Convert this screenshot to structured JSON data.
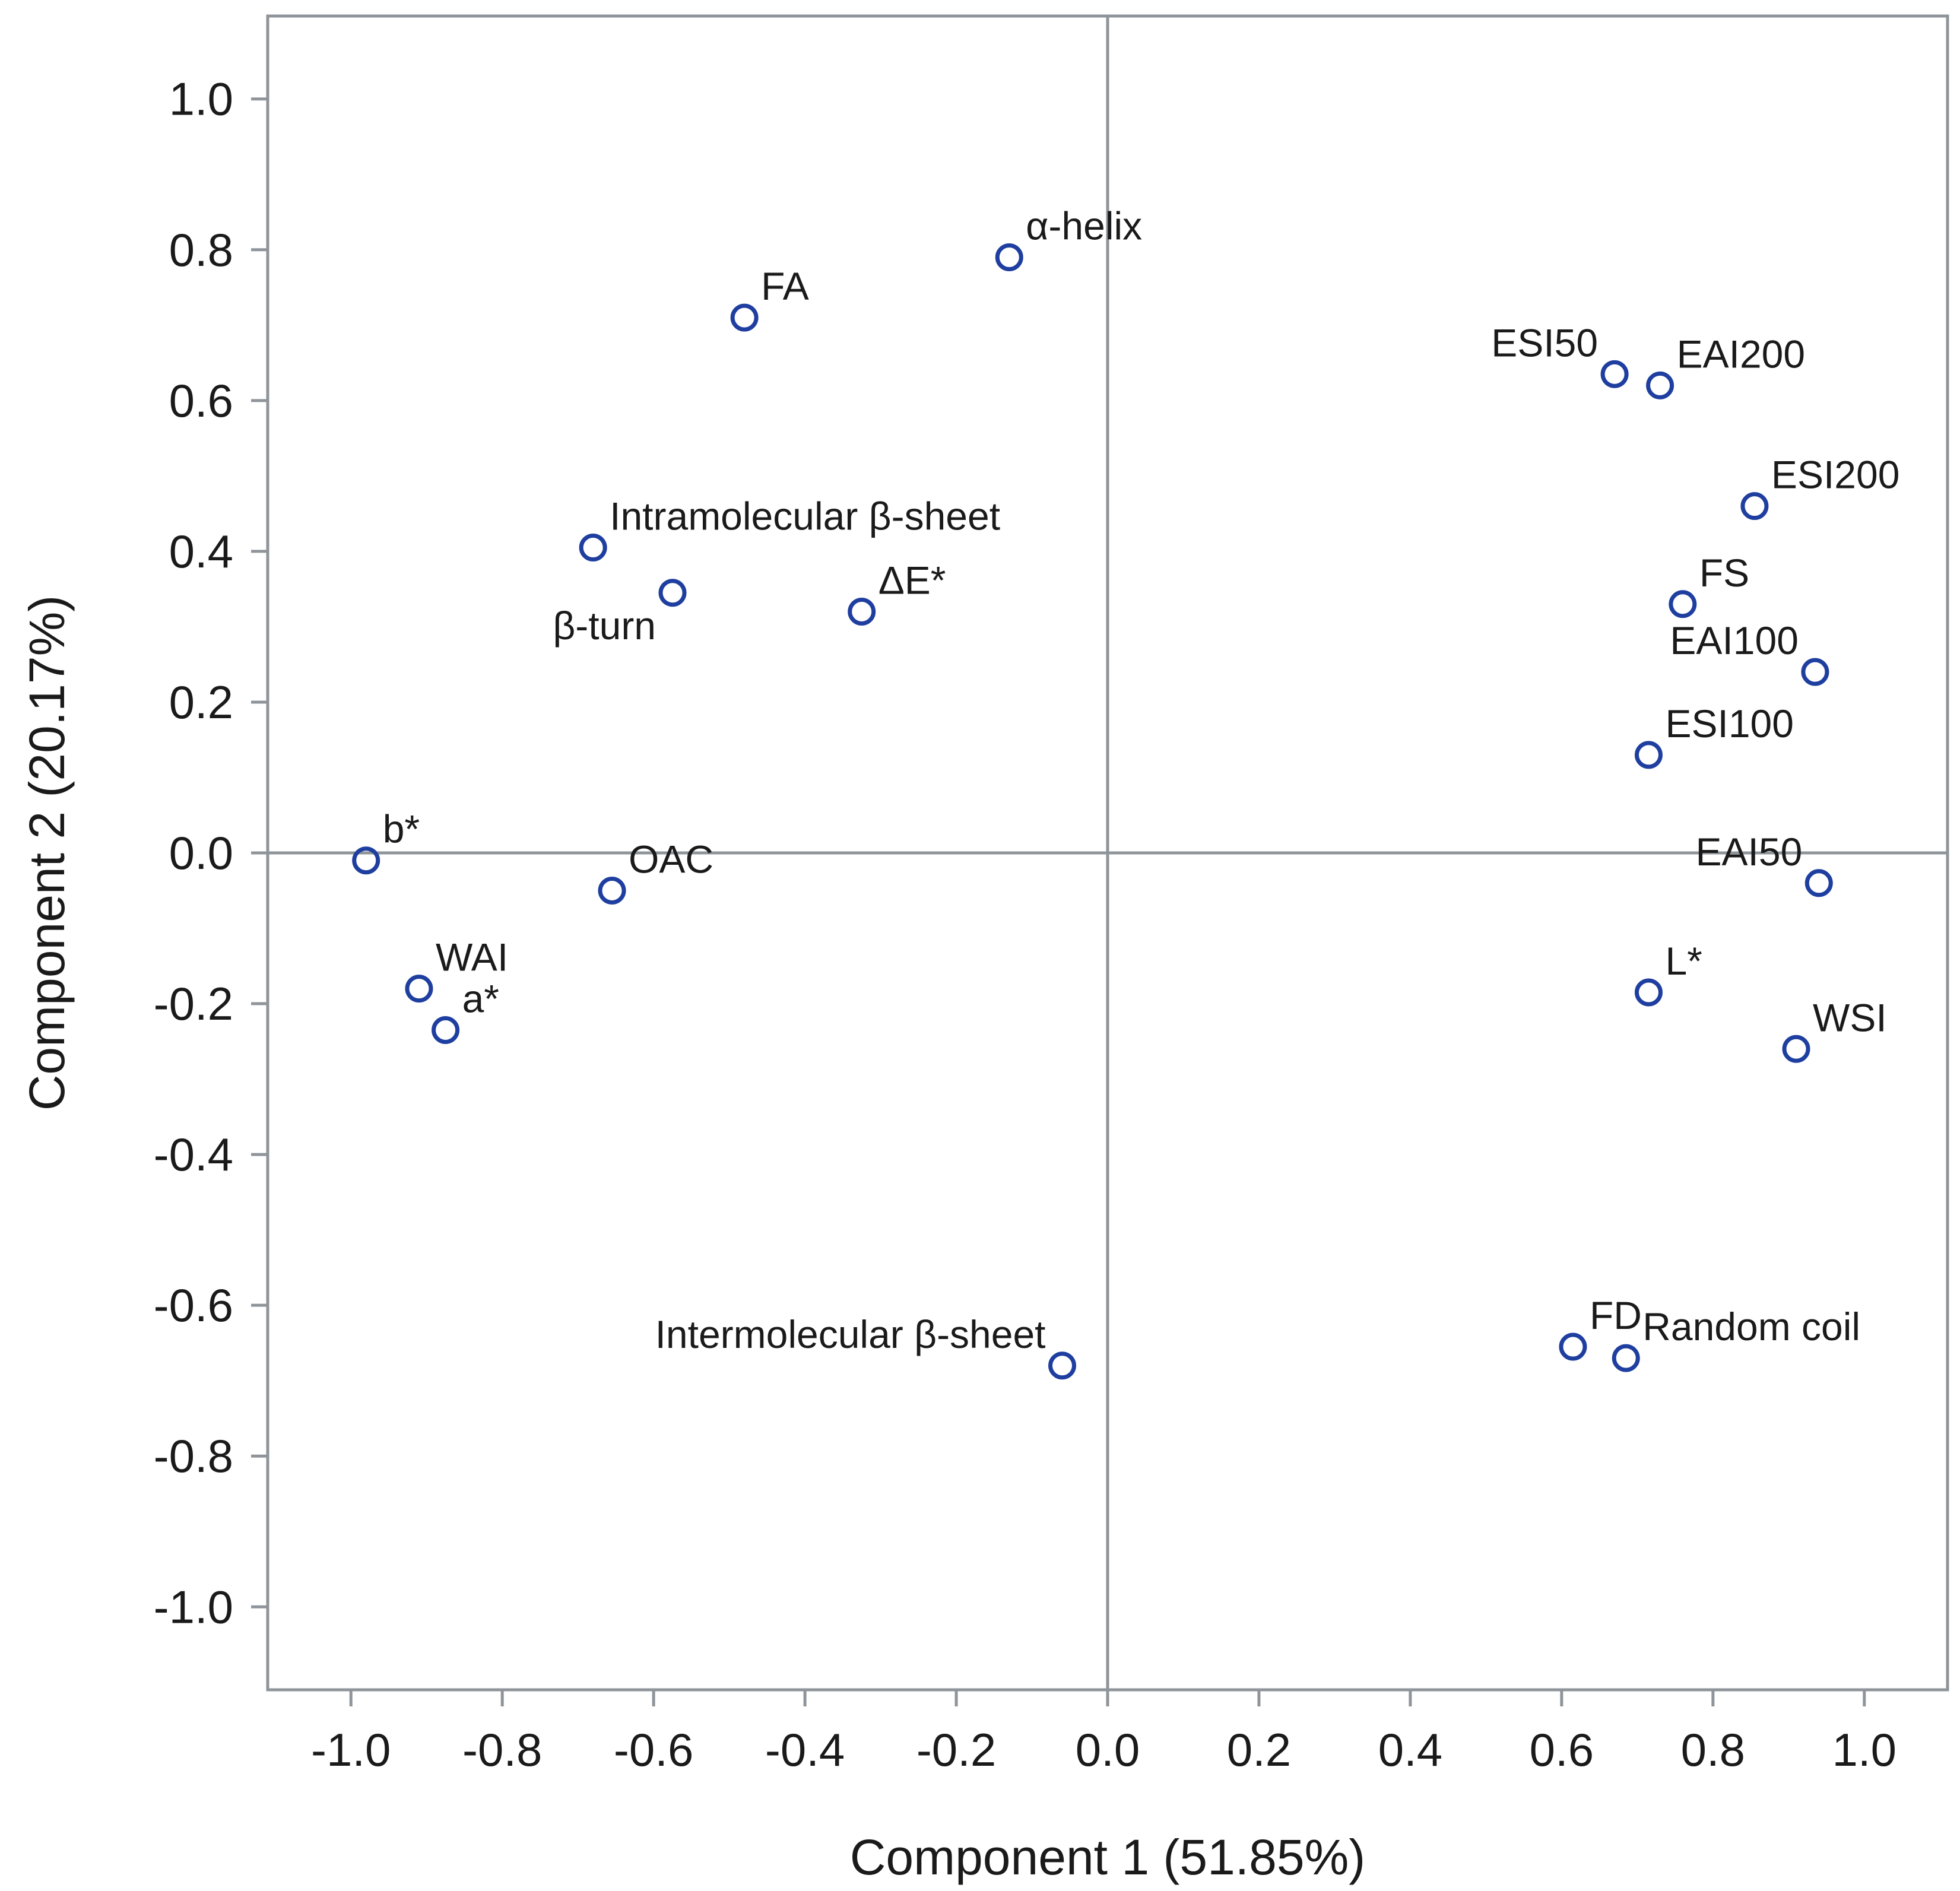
{
  "chart_data": {
    "type": "scatter",
    "title": "",
    "xlabel": "Component 1 (51.85%)",
    "ylabel": "Component 2 (20.17%)",
    "xlim": [
      -1.11,
      1.11
    ],
    "ylim": [
      -1.11,
      1.11
    ],
    "grid": false,
    "reference_lines": {
      "x": 0.0,
      "y": 0.0
    },
    "x_ticks": [
      -1.0,
      -0.8,
      -0.6,
      -0.4,
      -0.2,
      0.0,
      0.2,
      0.4,
      0.6,
      0.8,
      1.0
    ],
    "y_ticks": [
      1.0,
      0.8,
      0.6,
      0.4,
      0.2,
      0.0,
      -0.2,
      -0.4,
      -0.6,
      -0.8,
      -1.0
    ],
    "x_tick_labels": [
      "-1.0",
      "-0.8",
      "-0.6",
      "-0.4",
      "-0.2",
      "0.0",
      "0.2",
      "0.4",
      "0.6",
      "0.8",
      "1.0"
    ],
    "y_tick_labels": [
      "1.0",
      "0.8",
      "0.6",
      "0.4",
      "0.2",
      "0.0",
      "-0.2",
      "-0.4",
      "-0.6",
      "-0.8",
      "-1.0"
    ],
    "marker_color": "#1f3fa0",
    "axis_color": "#8e9499",
    "points": [
      {
        "label": "α-helix",
        "x": -0.13,
        "y": 0.79,
        "anchor": "ne"
      },
      {
        "label": "FA",
        "x": -0.48,
        "y": 0.71,
        "anchor": "ne"
      },
      {
        "label": "ESI50",
        "x": 0.67,
        "y": 0.635,
        "anchor": "nw"
      },
      {
        "label": "EAI200",
        "x": 0.73,
        "y": 0.62,
        "anchor": "ne"
      },
      {
        "label": "ESI200",
        "x": 0.855,
        "y": 0.46,
        "anchor": "ne"
      },
      {
        "label": "Intramolecular β-sheet",
        "x": -0.68,
        "y": 0.405,
        "anchor": "ne"
      },
      {
        "label": "β-turn",
        "x": -0.575,
        "y": 0.345,
        "anchor": "sw"
      },
      {
        "label": "ΔE*",
        "x": -0.325,
        "y": 0.32,
        "anchor": "ne"
      },
      {
        "label": "FS",
        "x": 0.76,
        "y": 0.33,
        "anchor": "ne"
      },
      {
        "label": "EAI100",
        "x": 0.935,
        "y": 0.24,
        "anchor": "nw"
      },
      {
        "label": "ESI100",
        "x": 0.715,
        "y": 0.13,
        "anchor": "ne"
      },
      {
        "label": "b*",
        "x": -0.98,
        "y": -0.01,
        "anchor": "ne"
      },
      {
        "label": "OAC",
        "x": -0.655,
        "y": -0.05,
        "anchor": "ne"
      },
      {
        "label": "EAI50",
        "x": 0.94,
        "y": -0.04,
        "anchor": "nw"
      },
      {
        "label": "WAI",
        "x": -0.91,
        "y": -0.18,
        "anchor": "ne"
      },
      {
        "label": "a*",
        "x": -0.875,
        "y": -0.235,
        "anchor": "ne"
      },
      {
        "label": "L*",
        "x": 0.715,
        "y": -0.185,
        "anchor": "ne"
      },
      {
        "label": "WSI",
        "x": 0.91,
        "y": -0.26,
        "anchor": "ne"
      },
      {
        "label": "Intermolecular β-sheet",
        "x": -0.06,
        "y": -0.68,
        "anchor": "nw"
      },
      {
        "label": "FD",
        "x": 0.615,
        "y": -0.655,
        "anchor": "ne"
      },
      {
        "label": "Random coil",
        "x": 0.685,
        "y": -0.67,
        "anchor": "ne"
      }
    ]
  }
}
